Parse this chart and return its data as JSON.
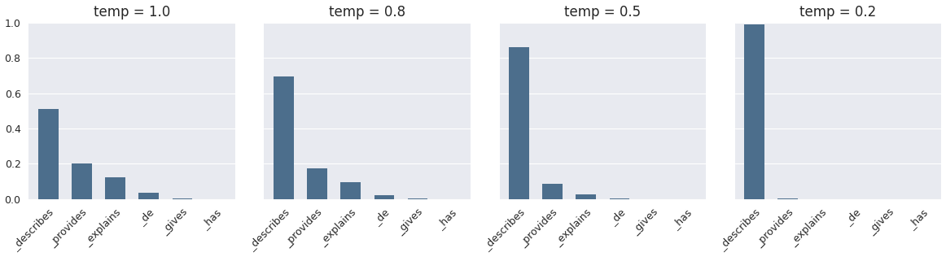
{
  "subplots": [
    {
      "title": "temp = 1.0",
      "categories": [
        "_describes",
        "_provides",
        "_explains",
        "_de",
        "_gives",
        "_has"
      ],
      "values": [
        0.51,
        0.2,
        0.125,
        0.035,
        0.005,
        0.0
      ]
    },
    {
      "title": "temp = 0.8",
      "categories": [
        "_describes",
        "_provides",
        "_explains",
        "_de",
        "_gives",
        "_has"
      ],
      "values": [
        0.695,
        0.175,
        0.095,
        0.022,
        0.003,
        0.0
      ]
    },
    {
      "title": "temp = 0.5",
      "categories": [
        "_describes",
        "_provides",
        "_explains",
        "_de",
        "_gives",
        "_has"
      ],
      "values": [
        0.862,
        0.085,
        0.025,
        0.003,
        0.0,
        0.0
      ]
    },
    {
      "title": "temp = 0.2",
      "categories": [
        "_describes",
        "_provides",
        "_explains",
        "_de",
        "_gives",
        "_has"
      ],
      "values": [
        0.99,
        0.005,
        0.0,
        0.0,
        0.0,
        0.0
      ]
    }
  ],
  "bar_color": "#4c6e8c",
  "background_color": "#e8eaf0",
  "figure_background": "#f0f0f5",
  "ylim": [
    0,
    1.0
  ],
  "yticks": [
    0.0,
    0.2,
    0.4,
    0.6,
    0.8,
    1.0
  ],
  "title_fontsize": 12,
  "tick_fontsize": 9,
  "figsize": [
    11.62,
    3.16
  ],
  "dpi": 100
}
